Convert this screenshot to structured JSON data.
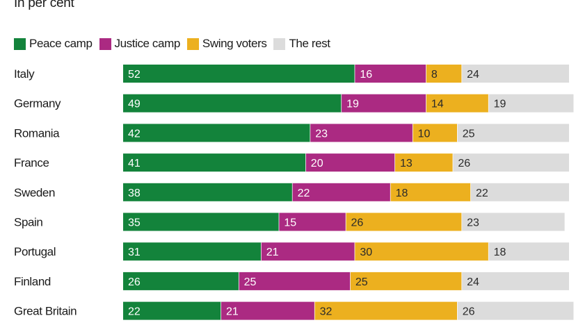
{
  "subtitle": "In per cent",
  "colors": {
    "peace": "#13833b",
    "justice": "#ab2a82",
    "swing": "#ecb01f",
    "rest": "#dcdcdc"
  },
  "chart_data": {
    "type": "bar",
    "orientation": "horizontal",
    "stacked": true,
    "legend_position": "top-left",
    "xlim": [
      0,
      100
    ],
    "categories": [
      "Italy",
      "Germany",
      "Romania",
      "France",
      "Sweden",
      "Spain",
      "Portugal",
      "Finland",
      "Great Britain"
    ],
    "series": [
      {
        "name": "Peace camp",
        "color": "#13833b",
        "values": [
          52,
          49,
          42,
          41,
          38,
          35,
          31,
          26,
          22
        ]
      },
      {
        "name": "Justice camp",
        "color": "#ab2a82",
        "values": [
          16,
          19,
          23,
          20,
          22,
          15,
          21,
          25,
          21
        ]
      },
      {
        "name": "Swing voters",
        "color": "#ecb01f",
        "values": [
          8,
          14,
          10,
          13,
          18,
          26,
          30,
          25,
          32
        ]
      },
      {
        "name": "The rest",
        "color": "#dcdcdc",
        "values": [
          24,
          19,
          25,
          26,
          22,
          23,
          18,
          24,
          26
        ]
      }
    ]
  }
}
